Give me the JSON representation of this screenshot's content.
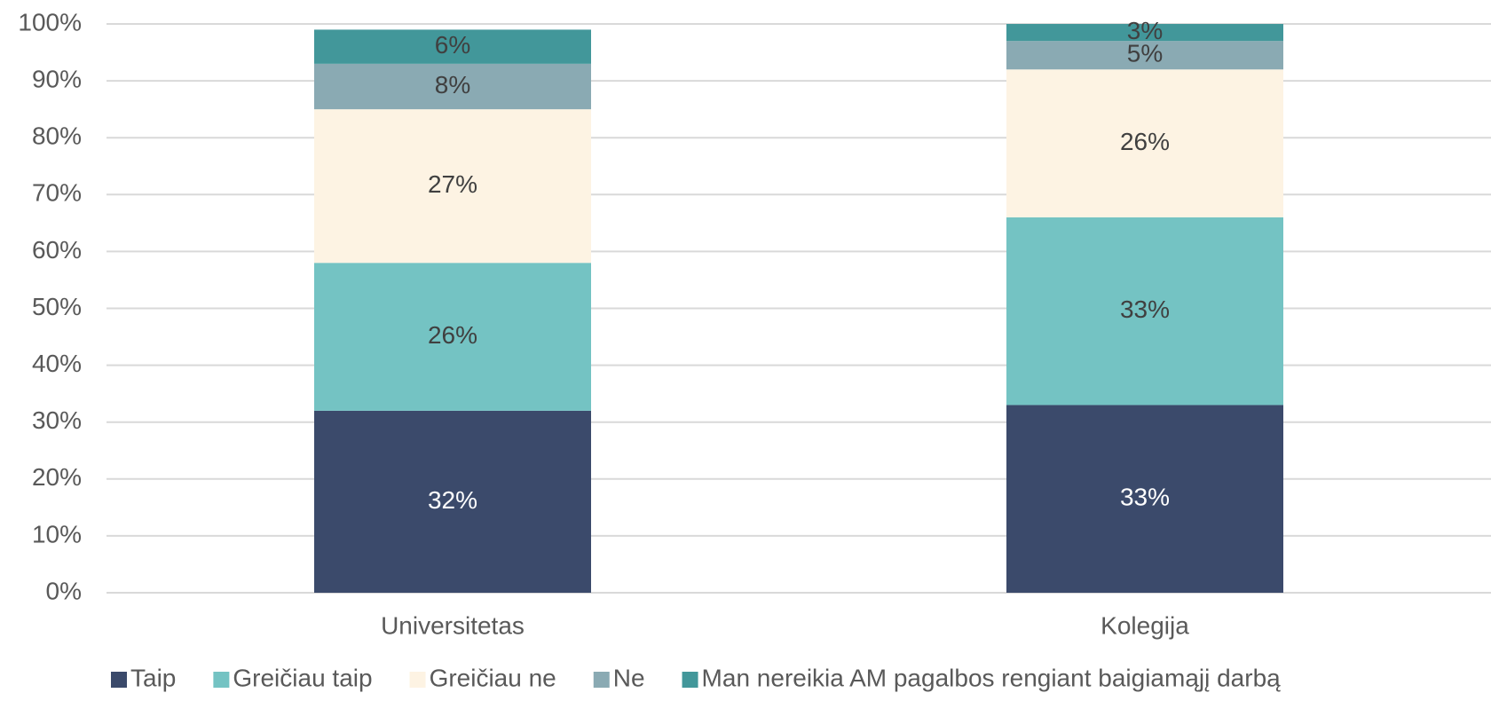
{
  "chart_data": {
    "type": "stacked_bar",
    "categories": [
      "Universitetas",
      "Kolegija"
    ],
    "series": [
      {
        "name": "Taip",
        "color": "#3b4a6b",
        "values": [
          32,
          33
        ],
        "value_labels": [
          "32%",
          "33%"
        ]
      },
      {
        "name": "Greičiau taip",
        "color": "#74c3c3",
        "values": [
          26,
          33
        ],
        "value_labels": [
          "26%",
          "33%"
        ]
      },
      {
        "name": "Greičiau ne",
        "color": "#fdf3e3",
        "values": [
          27,
          26
        ],
        "value_labels": [
          "27%",
          "26%"
        ]
      },
      {
        "name": "Ne",
        "color": "#8aaab3",
        "values": [
          8,
          5
        ],
        "value_labels": [
          "8%",
          "5%"
        ]
      },
      {
        "name": "Man nereikia AM pagalbos rengiant baigiamąjį darbą",
        "color": "#42979a",
        "values": [
          6,
          3
        ],
        "value_labels": [
          "6%",
          "3%"
        ]
      }
    ],
    "ylim": [
      0,
      100
    ],
    "yticks": [
      {
        "value": 0,
        "label": "0%"
      },
      {
        "value": 10,
        "label": "10%"
      },
      {
        "value": 20,
        "label": "20%"
      },
      {
        "value": 30,
        "label": "30%"
      },
      {
        "value": 40,
        "label": "40%"
      },
      {
        "value": 50,
        "label": "50%"
      },
      {
        "value": 60,
        "label": "60%"
      },
      {
        "value": 70,
        "label": "70%"
      },
      {
        "value": 80,
        "label": "80%"
      },
      {
        "value": 90,
        "label": "90%"
      },
      {
        "value": 100,
        "label": "100%"
      }
    ],
    "grid": true,
    "legend": "bottom"
  }
}
